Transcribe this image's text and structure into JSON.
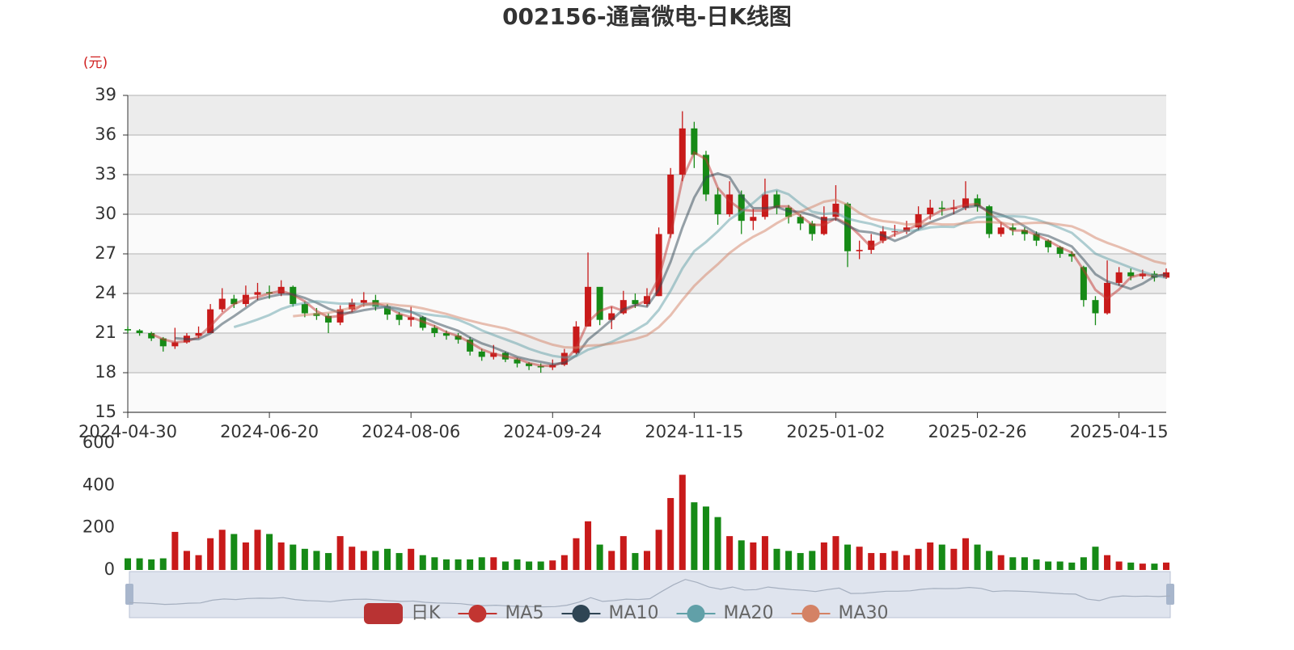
{
  "chart_data": {
    "type": "candlestick",
    "title": "002156-通富微电-日K线图",
    "y_unit": "(元)",
    "categories": [
      "2024-04-30",
      null,
      null,
      null,
      null,
      null,
      null,
      null,
      null,
      null,
      null,
      null,
      "2024-06-20",
      null,
      null,
      null,
      null,
      null,
      null,
      null,
      null,
      null,
      null,
      null,
      "2024-08-06",
      null,
      null,
      null,
      null,
      null,
      null,
      null,
      null,
      null,
      null,
      null,
      "2024-09-24",
      null,
      null,
      null,
      null,
      null,
      null,
      null,
      null,
      null,
      null,
      null,
      "2024-11-15",
      null,
      null,
      null,
      null,
      null,
      null,
      null,
      null,
      null,
      null,
      null,
      "2025-01-02",
      null,
      null,
      null,
      null,
      null,
      null,
      null,
      null,
      null,
      null,
      null,
      "2025-02-26",
      null,
      null,
      null,
      null,
      null,
      null,
      null,
      null,
      null,
      null,
      null,
      "2025-04-15",
      null,
      null,
      null,
      null
    ],
    "ylim": [
      15,
      39
    ],
    "yticks": [
      15,
      18,
      21,
      24,
      27,
      30,
      33,
      36,
      39
    ],
    "up_color": "#c81a1a",
    "down_color": "#168a16",
    "series": [
      {
        "name": "日K",
        "color": "#b93333",
        "values": [
          [
            21.3,
            21.2,
            21.0,
            21.5
          ],
          [
            21.2,
            21.0,
            20.8,
            21.3
          ],
          [
            21.0,
            20.6,
            20.4,
            21.1
          ],
          [
            20.6,
            20.0,
            19.6,
            20.7
          ],
          [
            20.0,
            20.3,
            19.8,
            21.4
          ],
          [
            20.3,
            20.8,
            20.2,
            21.0
          ],
          [
            20.8,
            21.0,
            20.6,
            21.5
          ],
          [
            21.0,
            22.8,
            21.0,
            23.2
          ],
          [
            22.8,
            23.6,
            22.6,
            24.4
          ],
          [
            23.6,
            23.2,
            22.9,
            23.9
          ],
          [
            23.2,
            23.9,
            23.0,
            24.6
          ],
          [
            23.9,
            24.1,
            23.5,
            24.8
          ],
          [
            24.1,
            24.0,
            23.6,
            24.6
          ],
          [
            24.0,
            24.5,
            23.8,
            25.0
          ],
          [
            24.5,
            23.2,
            23.0,
            24.6
          ],
          [
            23.2,
            22.5,
            22.2,
            23.4
          ],
          [
            22.5,
            22.3,
            22.0,
            22.9
          ],
          [
            22.3,
            21.8,
            21.0,
            22.5
          ],
          [
            21.8,
            22.8,
            21.6,
            23.1
          ],
          [
            22.8,
            23.3,
            22.6,
            23.6
          ],
          [
            23.3,
            23.5,
            23.0,
            24.1
          ],
          [
            23.5,
            23.0,
            22.7,
            23.9
          ],
          [
            23.0,
            22.4,
            22.0,
            23.2
          ],
          [
            22.4,
            22.0,
            21.6,
            22.6
          ],
          [
            22.0,
            22.2,
            21.5,
            23.0
          ],
          [
            22.2,
            21.4,
            21.2,
            22.3
          ],
          [
            21.4,
            21.0,
            20.7,
            21.6
          ],
          [
            21.0,
            20.8,
            20.5,
            21.2
          ],
          [
            20.8,
            20.5,
            20.2,
            21.0
          ],
          [
            20.5,
            19.6,
            19.3,
            20.7
          ],
          [
            19.6,
            19.2,
            18.9,
            19.8
          ],
          [
            19.2,
            19.5,
            19.0,
            20.1
          ],
          [
            19.5,
            19.0,
            18.8,
            19.6
          ],
          [
            19.0,
            18.7,
            18.4,
            19.1
          ],
          [
            18.7,
            18.5,
            18.2,
            18.8
          ],
          [
            18.5,
            18.4,
            18.0,
            18.7
          ],
          [
            18.4,
            18.6,
            18.2,
            19.0
          ],
          [
            18.6,
            19.5,
            18.5,
            19.8
          ],
          [
            19.5,
            21.5,
            19.4,
            21.9
          ],
          [
            21.5,
            24.5,
            21.5,
            27.1
          ],
          [
            24.5,
            22.0,
            21.6,
            24.0
          ],
          [
            22.0,
            22.5,
            21.3,
            23.0
          ],
          [
            22.5,
            23.5,
            22.4,
            24.2
          ],
          [
            23.5,
            23.2,
            22.9,
            24.0
          ],
          [
            23.2,
            23.8,
            23.0,
            24.4
          ],
          [
            23.8,
            28.5,
            23.8,
            29.0
          ],
          [
            28.5,
            33.0,
            28.2,
            33.5
          ],
          [
            33.0,
            36.5,
            32.5,
            37.8
          ],
          [
            36.5,
            34.5,
            33.5,
            37.0
          ],
          [
            34.5,
            31.5,
            31.0,
            34.8
          ],
          [
            31.5,
            30.0,
            29.2,
            32.0
          ],
          [
            30.0,
            31.5,
            29.8,
            32.5
          ],
          [
            31.5,
            29.5,
            28.5,
            31.8
          ],
          [
            29.5,
            29.8,
            28.8,
            30.4
          ],
          [
            29.8,
            31.5,
            29.6,
            32.7
          ],
          [
            31.5,
            30.5,
            30.0,
            31.8
          ],
          [
            30.5,
            29.8,
            29.3,
            30.7
          ],
          [
            29.8,
            29.3,
            28.8,
            30.0
          ],
          [
            29.3,
            28.5,
            28.0,
            29.5
          ],
          [
            28.5,
            29.8,
            28.4,
            30.6
          ],
          [
            29.8,
            30.8,
            29.5,
            32.2
          ],
          [
            30.8,
            27.2,
            26.0,
            30.9
          ],
          [
            27.2,
            27.3,
            26.6,
            28.0
          ],
          [
            27.3,
            28.0,
            27.0,
            28.5
          ],
          [
            28.0,
            28.7,
            27.8,
            29.1
          ],
          [
            28.7,
            28.7,
            28.3,
            29.2
          ],
          [
            28.7,
            29.0,
            28.5,
            29.5
          ],
          [
            29.0,
            30.0,
            28.8,
            30.6
          ],
          [
            30.0,
            30.5,
            29.6,
            31.1
          ],
          [
            30.5,
            30.4,
            29.9,
            31.0
          ],
          [
            30.4,
            30.5,
            30.0,
            31.1
          ],
          [
            30.5,
            31.2,
            30.3,
            32.5
          ],
          [
            31.2,
            30.6,
            30.2,
            31.5
          ],
          [
            30.6,
            28.5,
            28.2,
            30.7
          ],
          [
            28.5,
            29.0,
            28.3,
            29.4
          ],
          [
            29.0,
            28.8,
            28.4,
            29.3
          ],
          [
            28.8,
            28.5,
            28.0,
            29.0
          ],
          [
            28.5,
            28.0,
            27.6,
            28.7
          ],
          [
            28.0,
            27.5,
            27.1,
            28.1
          ],
          [
            27.5,
            27.0,
            26.7,
            27.6
          ],
          [
            27.0,
            26.8,
            26.4,
            27.2
          ],
          [
            26.0,
            23.5,
            23.0,
            26.1
          ],
          [
            23.5,
            22.5,
            21.6,
            23.8
          ],
          [
            22.5,
            24.8,
            22.4,
            26.5
          ],
          [
            24.8,
            25.6,
            24.6,
            26.0
          ],
          [
            25.6,
            25.3,
            25.0,
            25.9
          ],
          [
            25.3,
            25.5,
            25.1,
            25.8
          ],
          [
            25.5,
            25.2,
            24.9,
            25.7
          ],
          [
            25.2,
            25.6,
            25.1,
            25.9
          ]
        ]
      },
      {
        "name": "MA5",
        "color": "#c23531",
        "values": [
          null,
          null,
          20.93,
          20.53,
          20.3,
          20.37,
          20.7,
          21.53,
          22.47,
          23.2,
          23.57,
          23.73,
          24.0,
          24.2,
          23.9,
          23.4,
          22.67,
          22.2,
          22.3,
          22.63,
          23.2,
          23.27,
          22.97,
          22.47,
          22.2,
          21.87,
          21.53,
          21.07,
          20.77,
          20.3,
          19.77,
          19.43,
          19.23,
          19.07,
          18.73,
          18.53,
          18.5,
          18.83,
          19.87,
          21.83,
          22.67,
          23.0,
          22.67,
          23.07,
          23.5,
          25.17,
          28.43,
          32.67,
          34.67,
          34.17,
          32.0,
          31.0,
          30.33,
          30.27,
          30.27,
          30.6,
          30.6,
          29.87,
          29.2,
          29.2,
          29.7,
          29.27,
          28.43,
          27.5,
          28.0,
          28.47,
          28.8,
          29.23,
          29.83,
          30.3,
          30.47,
          30.7,
          30.77,
          30.1,
          29.37,
          28.77,
          28.77,
          28.43,
          28.0,
          27.5,
          27.1,
          25.77,
          24.27,
          23.6,
          24.3,
          25.23,
          25.47,
          25.33,
          25.43
        ]
      },
      {
        "name": "MA10",
        "color": "#2f4554",
        "values": [
          null,
          null,
          null,
          null,
          20.62,
          20.54,
          20.54,
          20.98,
          21.7,
          22.28,
          22.9,
          23.52,
          23.76,
          23.94,
          23.94,
          23.66,
          23.3,
          22.86,
          22.52,
          22.54,
          22.74,
          22.88,
          23.0,
          22.84,
          22.62,
          22.2,
          21.8,
          21.48,
          21.18,
          20.66,
          20.22,
          19.92,
          19.56,
          19.2,
          18.98,
          18.82,
          18.64,
          18.74,
          19.3,
          20.5,
          21.22,
          22.0,
          22.8,
          23.14,
          23.0,
          24.3,
          26.4,
          29.0,
          31.26,
          32.8,
          33.1,
          32.8,
          31.4,
          30.46,
          30.46,
          30.56,
          30.22,
          30.18,
          29.92,
          29.58,
          29.64,
          29.12,
          28.72,
          28.62,
          28.4,
          27.98,
          28.34,
          28.88,
          29.38,
          29.72,
          30.08,
          30.52,
          30.64,
          30.24,
          29.96,
          29.62,
          29.08,
          28.56,
          28.36,
          27.96,
          27.56,
          26.56,
          25.46,
          24.92,
          24.64,
          24.34,
          24.74,
          25.28,
          25.44
        ]
      },
      {
        "name": "MA20",
        "color": "#61a0a8",
        "values": [
          null,
          null,
          null,
          null,
          null,
          null,
          null,
          null,
          null,
          21.45,
          21.72,
          22.03,
          22.37,
          22.82,
          23.11,
          23.28,
          23.41,
          23.31,
          23.23,
          23.24,
          23.2,
          23.09,
          22.93,
          22.68,
          22.58,
          22.47,
          22.34,
          22.24,
          22.01,
          21.64,
          21.21,
          20.86,
          20.52,
          20.19,
          19.82,
          19.52,
          19.28,
          19.15,
          19.25,
          19.74,
          20.02,
          20.32,
          20.77,
          21.22,
          21.75,
          22.76,
          24.2,
          25.9,
          27.2,
          27.9,
          28.7,
          29.6,
          30.2,
          30.86,
          31.63,
          31.83,
          31.51,
          30.79,
          30.19,
          30.02,
          30.1,
          29.67,
          29.45,
          29.27,
          28.99,
          28.81,
          28.73,
          28.8,
          29.0,
          29.06,
          29.03,
          29.43,
          29.76,
          29.81,
          29.84,
          29.85,
          29.8,
          29.6,
          29.3,
          28.96,
          28.59,
          27.82,
          27.01,
          26.64,
          26.3,
          25.95,
          25.65,
          25.37,
          25.18
        ]
      },
      {
        "name": "MA30",
        "color": "#d48265",
        "values": [
          null,
          null,
          null,
          null,
          null,
          null,
          null,
          null,
          null,
          null,
          null,
          null,
          null,
          null,
          22.28,
          22.37,
          22.45,
          22.53,
          22.72,
          22.92,
          23.1,
          23.23,
          23.21,
          23.1,
          23.03,
          22.87,
          22.66,
          22.45,
          22.18,
          21.94,
          21.72,
          21.53,
          21.35,
          21.07,
          20.75,
          20.41,
          20.12,
          19.93,
          19.89,
          20.05,
          20.09,
          20.19,
          20.37,
          20.55,
          20.83,
          21.45,
          22.35,
          23.51,
          24.57,
          25.43,
          26.21,
          27.07,
          27.73,
          28.29,
          28.75,
          29.32,
          29.81,
          30.19,
          30.55,
          30.95,
          31.1,
          30.71,
          30.1,
          29.67,
          29.48,
          29.39,
          29.23,
          29.26,
          29.31,
          29.23,
          29.23,
          29.33,
          29.41,
          29.41,
          29.36,
          29.23,
          29.31,
          29.36,
          29.33,
          29.21,
          29.09,
          28.72,
          28.22,
          27.84,
          27.52,
          27.17,
          26.79,
          26.43,
          26.24
        ]
      }
    ],
    "volume": {
      "ylim": [
        0,
        600
      ],
      "yticks": [
        0,
        200,
        400,
        600
      ],
      "values": [
        55,
        55,
        50,
        55,
        180,
        90,
        70,
        150,
        190,
        170,
        130,
        190,
        170,
        130,
        120,
        100,
        90,
        80,
        160,
        110,
        90,
        90,
        100,
        80,
        100,
        70,
        60,
        50,
        50,
        50,
        60,
        60,
        40,
        50,
        40,
        40,
        45,
        70,
        150,
        230,
        120,
        90,
        160,
        80,
        90,
        190,
        340,
        450,
        320,
        300,
        250,
        160,
        140,
        130,
        160,
        100,
        90,
        80,
        90,
        130,
        160,
        120,
        110,
        80,
        80,
        90,
        70,
        100,
        130,
        120,
        100,
        150,
        120,
        90,
        70,
        60,
        60,
        50,
        40,
        40,
        35,
        60,
        110,
        70,
        40,
        35,
        30,
        30,
        35
      ]
    },
    "grid": true
  }
}
